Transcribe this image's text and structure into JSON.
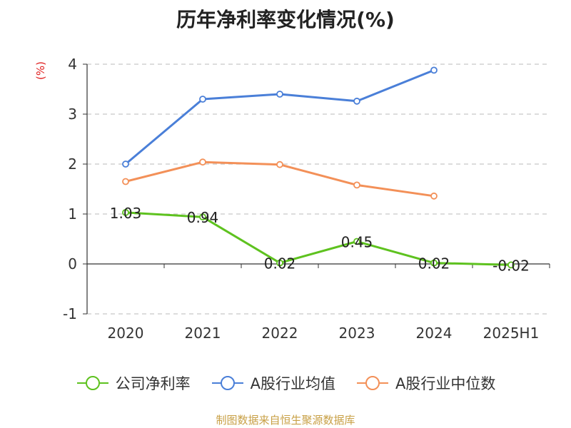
{
  "chart_data": {
    "type": "line",
    "title": "历年净利率变化情况(%)",
    "ylabel": "(%)",
    "xlabel": "",
    "categories": [
      "2020",
      "2021",
      "2022",
      "2023",
      "2024",
      "2025H1"
    ],
    "ylim": [
      -1,
      4
    ],
    "yticks": [
      "-1",
      "0",
      "1",
      "2",
      "3",
      "4"
    ],
    "grid": true,
    "legend_position": "bottom",
    "series": [
      {
        "name": "公司净利率",
        "color": "#5ec21f",
        "values": [
          1.03,
          0.94,
          0.02,
          0.45,
          0.02,
          -0.02
        ],
        "labels": [
          "1.03",
          "0.94",
          "0.02",
          "0.45",
          "0.02",
          "-0.02"
        ]
      },
      {
        "name": "A股行业均值",
        "color": "#4a7fd8",
        "values": [
          2.0,
          3.3,
          3.4,
          3.26,
          3.88,
          null
        ]
      },
      {
        "name": "A股行业中位数",
        "color": "#f39058",
        "values": [
          1.65,
          2.04,
          1.99,
          1.58,
          1.36,
          null
        ]
      }
    ]
  },
  "footer": {
    "source": "制图数据来自恒生聚源数据库"
  }
}
